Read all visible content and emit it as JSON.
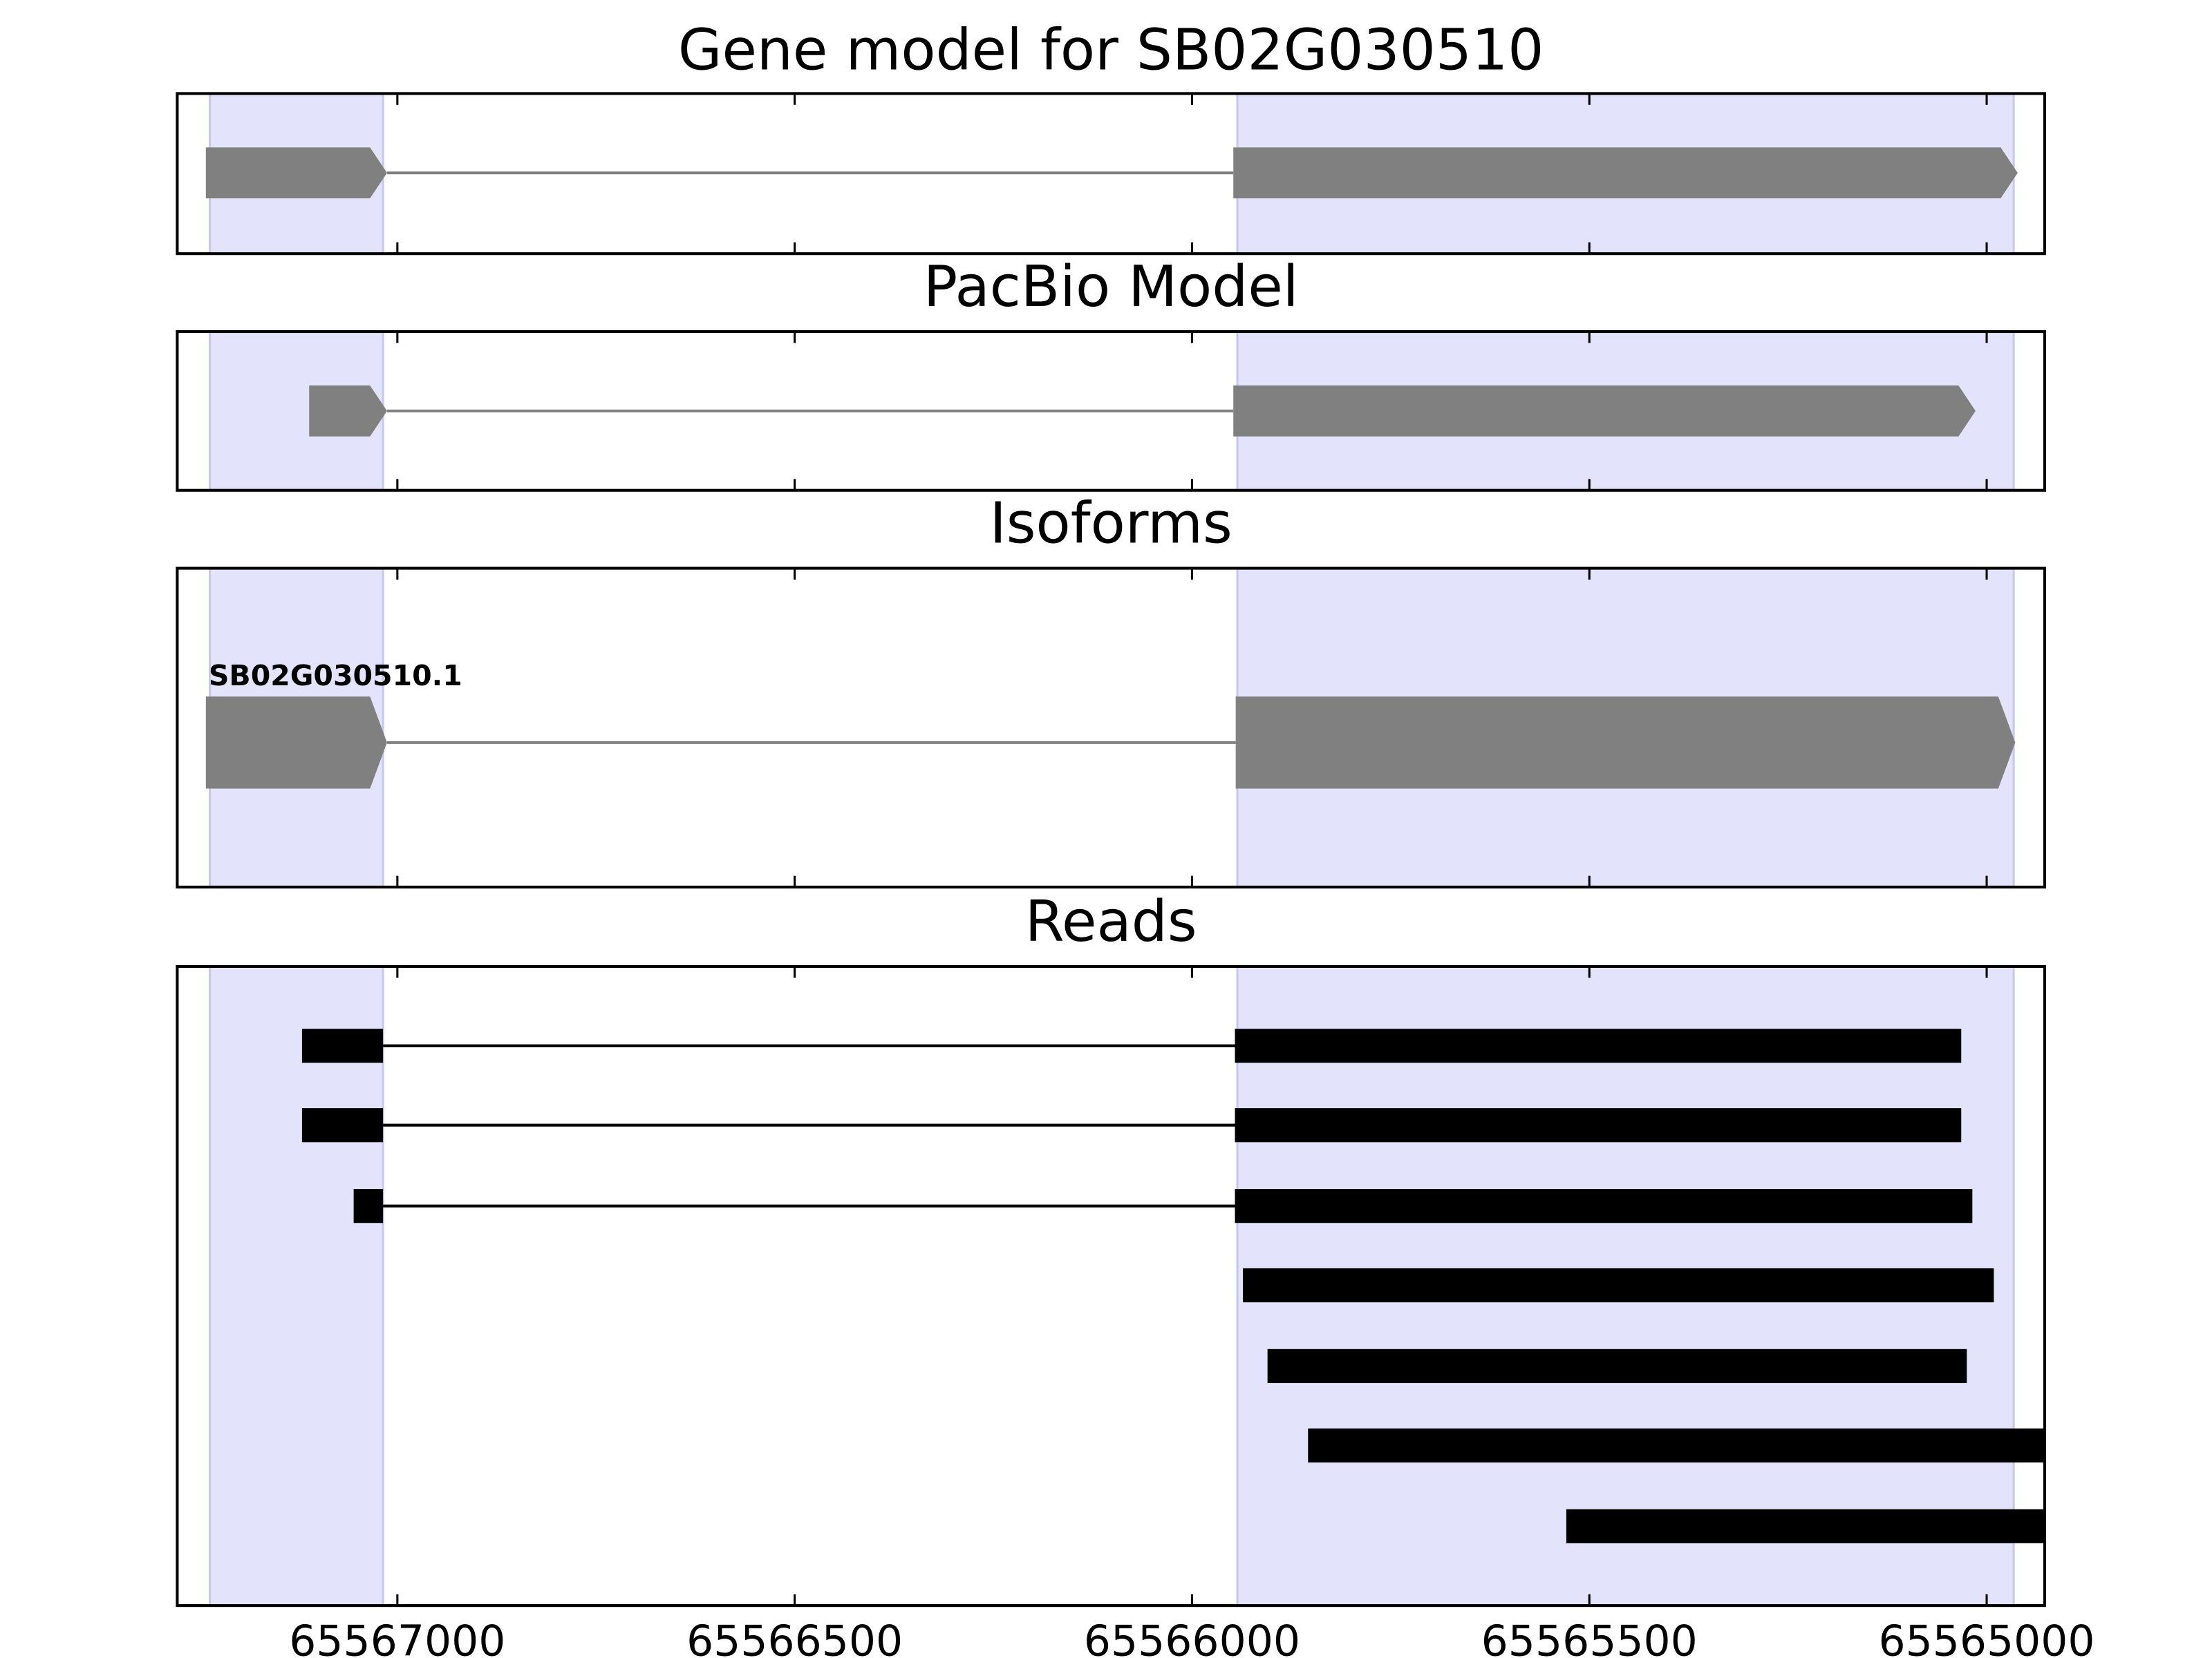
{
  "chart_data": [
    {
      "type": "gene_track",
      "title": "Gene model for SB02G030510",
      "style": "arrow",
      "color": "#808080",
      "highlight_color": "#e3e3fb",
      "highlights": [
        [
          65567236,
          65567018
        ],
        [
          65565943,
          65564966
        ]
      ],
      "features": [
        {
          "exons": [
            [
              65567241,
              65567013
            ],
            [
              65565948,
              65564961
            ]
          ]
        }
      ]
    },
    {
      "type": "gene_track",
      "title": "PacBio Model",
      "style": "arrow",
      "color": "#808080",
      "highlight_color": "#e3e3fb",
      "highlights": [
        [
          65567236,
          65567018
        ],
        [
          65565943,
          65564966
        ]
      ],
      "features": [
        {
          "exons": [
            [
              65567111,
              65567013
            ],
            [
              65565948,
              65565014
            ]
          ]
        }
      ]
    },
    {
      "type": "gene_track",
      "title": "Isoforms",
      "style": "arrow",
      "color": "#808080",
      "highlight_color": "#e3e3fb",
      "highlights": [
        [
          65567236,
          65567018
        ],
        [
          65565943,
          65564966
        ]
      ],
      "features": [
        {
          "name": "SB02G030510.1",
          "exons": [
            [
              65567241,
              65567013
            ],
            [
              65565945,
              65564964
            ]
          ]
        }
      ]
    },
    {
      "type": "gene_track",
      "title": "Reads",
      "style": "box",
      "color": "#000000",
      "highlight_color": "#e3e3fb",
      "highlights": [
        [
          65567236,
          65567018
        ],
        [
          65565943,
          65564966
        ]
      ],
      "features": [
        {
          "exons": [
            [
              65567120,
              65567018
            ],
            [
              65565946,
              65565032
            ]
          ]
        },
        {
          "exons": [
            [
              65567120,
              65567018
            ],
            [
              65565946,
              65565032
            ]
          ]
        },
        {
          "exons": [
            [
              65567055,
              65567018
            ],
            [
              65565946,
              65565018
            ]
          ]
        },
        {
          "exons": [
            [
              65565936,
              65564991
            ]
          ]
        },
        {
          "exons": [
            [
              65565905,
              65565025
            ]
          ]
        },
        {
          "exons": [
            [
              65565854,
              65564900
            ]
          ]
        },
        {
          "exons": [
            [
              65565529,
              65564900
            ]
          ]
        }
      ],
      "xlim": [
        65567277,
        65564927
      ],
      "xticks": [
        65567000,
        65566500,
        65566000,
        65565500,
        65565000
      ]
    }
  ]
}
